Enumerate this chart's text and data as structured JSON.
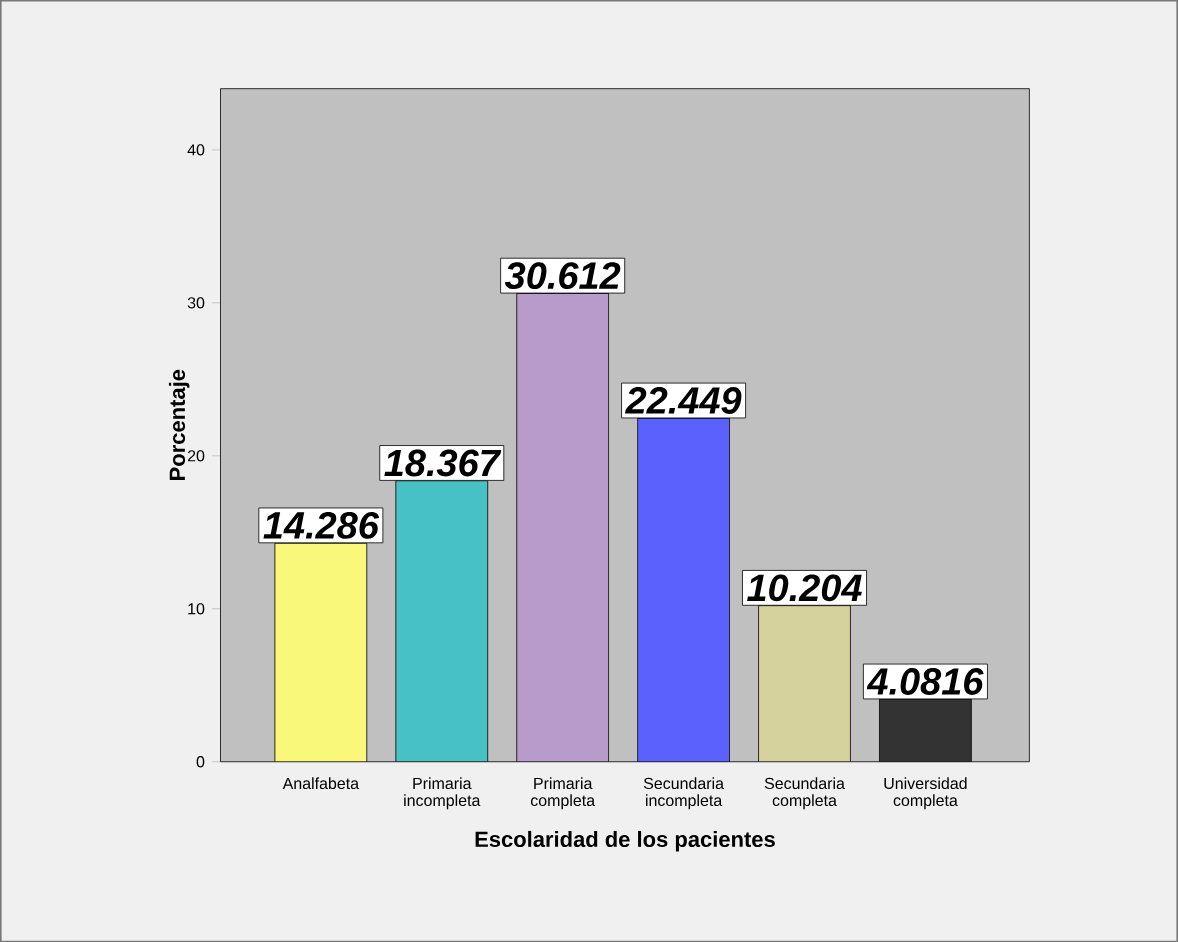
{
  "chart_data": {
    "type": "bar",
    "xlabel": "Escolaridad de los pacientes",
    "ylabel": "Porcentaje",
    "categories": [
      "Analfabeta",
      "Primaria incompleta",
      "Primaria completa",
      "Secundaria incompleta",
      "Secundaria completa",
      "Universidad completa"
    ],
    "values": [
      14.286,
      18.367,
      30.612,
      22.449,
      10.204,
      4.0816
    ],
    "colors": [
      "#faf87a",
      "#48c1c4",
      "#b99bcb",
      "#5b61fd",
      "#d6d29d",
      "#333333"
    ],
    "ylim": [
      0,
      44
    ],
    "yticks": [
      0,
      10,
      20,
      30,
      40
    ],
    "data_labels": true
  }
}
